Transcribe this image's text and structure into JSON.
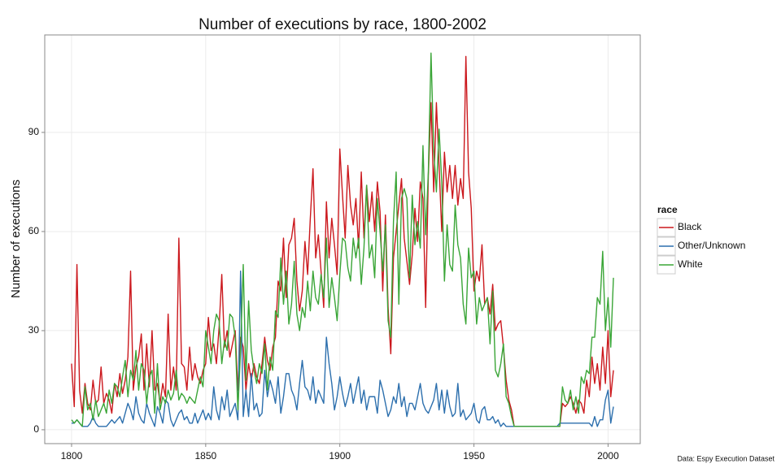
{
  "chart_data": {
    "type": "line",
    "title": "Number of executions by race, 1800-2002",
    "y_label": "Number of executions",
    "caption": "Data: Espy Execution Dataset",
    "legend_title": "race",
    "legend_position": "right",
    "grid": true,
    "xlim": [
      1790,
      2012
    ],
    "ylim": [
      -4.2,
      119.5
    ],
    "xticks": [
      1800,
      1850,
      1900,
      1950,
      2000
    ],
    "yticks": [
      0,
      30,
      60,
      90
    ],
    "x": [
      1800,
      1801,
      1802,
      1803,
      1804,
      1805,
      1806,
      1807,
      1808,
      1809,
      1810,
      1811,
      1812,
      1813,
      1814,
      1815,
      1816,
      1817,
      1818,
      1819,
      1820,
      1821,
      1822,
      1823,
      1824,
      1825,
      1826,
      1827,
      1828,
      1829,
      1830,
      1831,
      1832,
      1833,
      1834,
      1835,
      1836,
      1837,
      1838,
      1839,
      1840,
      1841,
      1842,
      1843,
      1844,
      1845,
      1846,
      1847,
      1848,
      1849,
      1850,
      1851,
      1852,
      1853,
      1854,
      1855,
      1856,
      1857,
      1858,
      1859,
      1860,
      1861,
      1862,
      1863,
      1864,
      1865,
      1866,
      1867,
      1868,
      1869,
      1870,
      1871,
      1872,
      1873,
      1874,
      1875,
      1876,
      1877,
      1878,
      1879,
      1880,
      1881,
      1882,
      1883,
      1884,
      1885,
      1886,
      1887,
      1888,
      1889,
      1890,
      1891,
      1892,
      1893,
      1894,
      1895,
      1896,
      1897,
      1898,
      1899,
      1900,
      1901,
      1902,
      1903,
      1904,
      1905,
      1906,
      1907,
      1908,
      1909,
      1910,
      1911,
      1912,
      1913,
      1914,
      1915,
      1916,
      1917,
      1918,
      1919,
      1920,
      1921,
      1922,
      1923,
      1924,
      1925,
      1926,
      1927,
      1928,
      1929,
      1930,
      1931,
      1932,
      1933,
      1934,
      1935,
      1936,
      1937,
      1938,
      1939,
      1940,
      1941,
      1942,
      1943,
      1944,
      1945,
      1946,
      1947,
      1948,
      1949,
      1950,
      1951,
      1952,
      1953,
      1954,
      1955,
      1956,
      1957,
      1958,
      1959,
      1960,
      1961,
      1962,
      1963,
      1964,
      1965,
      1966,
      1967,
      1968,
      1969,
      1970,
      1971,
      1972,
      1973,
      1974,
      1975,
      1976,
      1977,
      1978,
      1979,
      1980,
      1981,
      1982,
      1983,
      1984,
      1985,
      1986,
      1987,
      1988,
      1989,
      1990,
      1991,
      1992,
      1993,
      1994,
      1995,
      1996,
      1997,
      1998,
      1999,
      2000,
      2001,
      2002
    ],
    "series": [
      {
        "name": "Black",
        "color": "#cb181d",
        "values": [
          20,
          7,
          50,
          12,
          5,
          14,
          8,
          6,
          15,
          8,
          9,
          19,
          8,
          11,
          9,
          5,
          14,
          10,
          17,
          11,
          15,
          22,
          48,
          12,
          19,
          22,
          29,
          12,
          26,
          13,
          30,
          12,
          14,
          8,
          14,
          10,
          35,
          12,
          19,
          12,
          58,
          20,
          19,
          12,
          25,
          15,
          20,
          16,
          14,
          18,
          20,
          34,
          24,
          26,
          20,
          31,
          47,
          25,
          30,
          22,
          26,
          30,
          12,
          28,
          25,
          12,
          20,
          15,
          20,
          16,
          14,
          20,
          28,
          21,
          18,
          25,
          28,
          45,
          42,
          58,
          40,
          56,
          58,
          64,
          45,
          36,
          42,
          57,
          47,
          64,
          79,
          52,
          59,
          48,
          37,
          69,
          52,
          64,
          56,
          47,
          85,
          71,
          58,
          80,
          68,
          62,
          70,
          55,
          78,
          58,
          74,
          63,
          72,
          60,
          75,
          66,
          42,
          65,
          37,
          23,
          52,
          60,
          68,
          76,
          58,
          51,
          44,
          53,
          67,
          57,
          75,
          70,
          37,
          77,
          99,
          72,
          99,
          80,
          60,
          84,
          72,
          80,
          70,
          80,
          68,
          76,
          70,
          113,
          78,
          67,
          42,
          48,
          45,
          56,
          38,
          40,
          35,
          44,
          30,
          32,
          33,
          25,
          15,
          9,
          6,
          1,
          1,
          1,
          1,
          1,
          1,
          1,
          1,
          1,
          1,
          1,
          1,
          1,
          1,
          1,
          1,
          1,
          1,
          8,
          7,
          8,
          10,
          8,
          5,
          9,
          8,
          5,
          15,
          10,
          22,
          14,
          20,
          12,
          25,
          14,
          30,
          10,
          18
        ]
      },
      {
        "name": "Other/Unknown",
        "color": "#2c6fad",
        "values": [
          2,
          2,
          3,
          2,
          1,
          1,
          1,
          2,
          4,
          2,
          1,
          1,
          1,
          1,
          2,
          3,
          2,
          3,
          4,
          2,
          5,
          8,
          6,
          3,
          10,
          5,
          3,
          2,
          8,
          5,
          3,
          1,
          7,
          5,
          2,
          9,
          8,
          3,
          1,
          3,
          5,
          6,
          3,
          4,
          2,
          2,
          5,
          2,
          4,
          6,
          3,
          5,
          3,
          13,
          6,
          3,
          10,
          6,
          12,
          4,
          6,
          8,
          3,
          48,
          4,
          12,
          4,
          17,
          6,
          8,
          4,
          5,
          18,
          10,
          15,
          12,
          8,
          16,
          5,
          10,
          17,
          17,
          12,
          10,
          6,
          14,
          21,
          13,
          12,
          9,
          16,
          8,
          12,
          10,
          8,
          28,
          20,
          14,
          6,
          10,
          16,
          11,
          7,
          10,
          14,
          8,
          12,
          16,
          8,
          12,
          6,
          10,
          10,
          10,
          5,
          15,
          12,
          8,
          4,
          6,
          10,
          8,
          14,
          7,
          10,
          4,
          8,
          8,
          6,
          10,
          14,
          8,
          6,
          5,
          7,
          9,
          14,
          6,
          12,
          5,
          12,
          7,
          4,
          5,
          14,
          4,
          6,
          3,
          4,
          5,
          8,
          3,
          2,
          6,
          7,
          3,
          3,
          4,
          2,
          3,
          1,
          2,
          1,
          1,
          1,
          1,
          1,
          1,
          1,
          1,
          1,
          1,
          1,
          1,
          1,
          1,
          1,
          1,
          1,
          1,
          1,
          1,
          2,
          2,
          2,
          2,
          2,
          2,
          2,
          2,
          2,
          2,
          2,
          2,
          1,
          4,
          1,
          3,
          3,
          9,
          12,
          2,
          7
        ]
      },
      {
        "name": "White",
        "color": "#3aa537",
        "values": [
          3,
          2,
          3,
          2,
          1,
          13,
          6,
          8,
          3,
          9,
          4,
          6,
          8,
          5,
          12,
          8,
          14,
          13,
          10,
          16,
          21,
          10,
          18,
          15,
          24,
          12,
          20,
          18,
          8,
          16,
          18,
          5,
          20,
          6,
          10,
          8,
          12,
          9,
          11,
          18,
          9,
          11,
          10,
          8,
          10,
          9,
          8,
          12,
          16,
          13,
          30,
          25,
          20,
          30,
          35,
          33,
          20,
          27,
          24,
          35,
          34,
          28,
          6,
          24,
          50,
          15,
          39,
          24,
          18,
          14,
          20,
          17,
          26,
          12,
          22,
          18,
          36,
          34,
          52,
          38,
          48,
          32,
          38,
          51,
          35,
          30,
          37,
          34,
          45,
          36,
          48,
          40,
          38,
          47,
          40,
          58,
          37,
          46,
          40,
          33,
          47,
          58,
          57,
          49,
          45,
          58,
          52,
          58,
          44,
          55,
          74,
          52,
          56,
          46,
          70,
          60,
          48,
          62,
          33,
          28,
          63,
          78,
          38,
          70,
          73,
          70,
          46,
          71,
          56,
          63,
          55,
          86,
          59,
          78,
          114,
          85,
          72,
          91,
          75,
          45,
          62,
          50,
          48,
          68,
          56,
          52,
          38,
          32,
          55,
          46,
          48,
          32,
          40,
          36,
          38,
          40,
          26,
          42,
          18,
          16,
          20,
          26,
          10,
          8,
          4,
          1,
          1,
          1,
          1,
          1,
          1,
          1,
          1,
          1,
          1,
          1,
          1,
          1,
          1,
          1,
          1,
          1,
          1,
          13,
          9,
          8,
          12,
          6,
          10,
          5,
          16,
          14,
          18,
          17,
          28,
          28,
          40,
          38,
          54,
          30,
          40,
          25,
          46
        ]
      }
    ]
  }
}
